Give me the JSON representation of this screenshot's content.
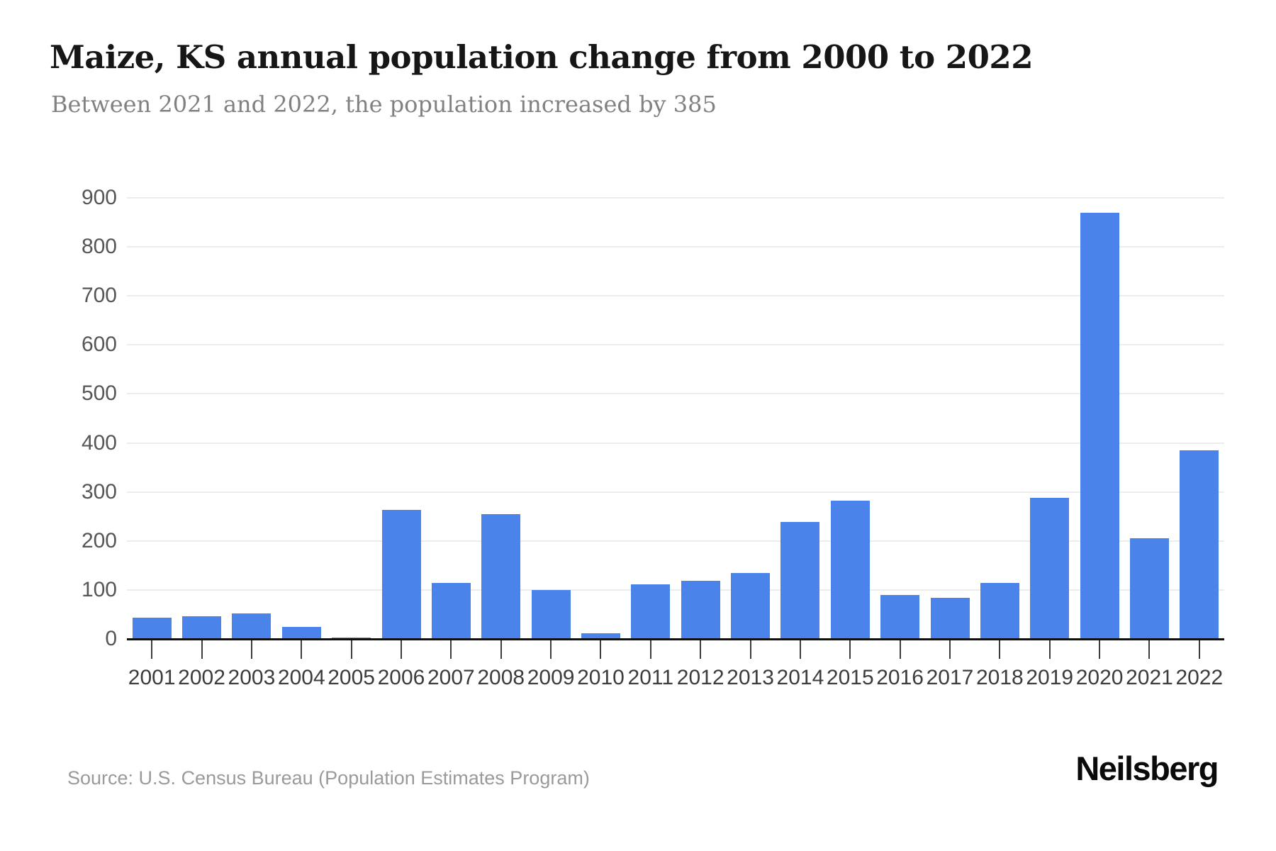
{
  "header": {
    "title": "Maize, KS annual population change from 2000 to 2022",
    "subtitle": "Between 2021 and 2022, the population increased by 385"
  },
  "footer": {
    "source": "Source: U.S. Census Bureau (Population Estimates Program)",
    "brand": "Neilsberg"
  },
  "colors": {
    "bar": "#4a83ea",
    "axis": "#101010",
    "gridline": "#ededed",
    "title_text": "#161616",
    "subtitle_text": "#818181",
    "y_tick_label": "#565656",
    "x_tick_label": "#3c3c3c",
    "source_text": "#9a9a9a",
    "brand_text": "#0a0a0a"
  },
  "chart_data": {
    "type": "bar",
    "title": "Maize, KS annual population change from 2000 to 2022",
    "subtitle": "Between 2021 and 2022, the population increased by 385",
    "xlabel": "",
    "ylabel": "",
    "categories": [
      "2001",
      "2002",
      "2003",
      "2004",
      "2005",
      "2006",
      "2007",
      "2008",
      "2009",
      "2010",
      "2011",
      "2012",
      "2013",
      "2014",
      "2015",
      "2016",
      "2017",
      "2018",
      "2019",
      "2020",
      "2021",
      "2022"
    ],
    "values": [
      43,
      46,
      52,
      24,
      3,
      264,
      115,
      254,
      100,
      11,
      112,
      119,
      135,
      239,
      282,
      90,
      84,
      115,
      288,
      869,
      206,
      385
    ],
    "ylim": [
      0,
      900
    ],
    "yticks": [
      0,
      100,
      200,
      300,
      400,
      500,
      600,
      700,
      800,
      900
    ],
    "grid": true,
    "legend": false,
    "bar_color": "#4a83ea"
  }
}
